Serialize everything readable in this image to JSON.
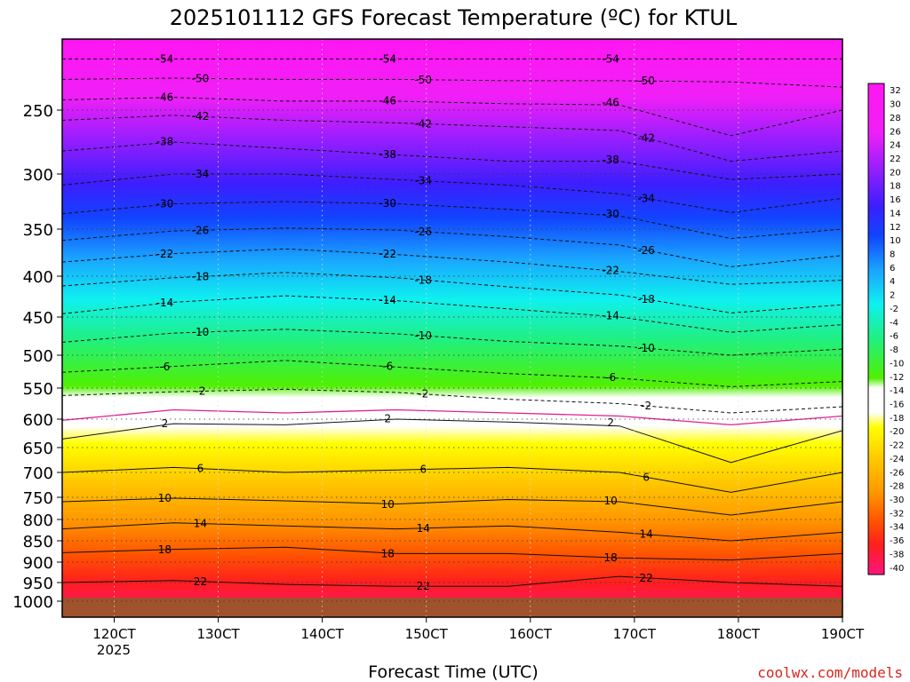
{
  "chart_data": {
    "type": "heatmap",
    "title": "2025101112 GFS Forecast Temperature (ºC) for KTUL",
    "xlabel": "Forecast Time (UTC)",
    "x_ticks": [
      "120CT",
      "130CT",
      "140CT",
      "150CT",
      "160CT",
      "170CT",
      "180CT",
      "190CT"
    ],
    "x_year": "2025",
    "x_range_days": [
      11.5,
      19.0
    ],
    "y_ticks": [
      "250",
      "300",
      "350",
      "400",
      "450",
      "500",
      "550",
      "600",
      "650",
      "700",
      "750",
      "800",
      "850",
      "900",
      "950",
      "1000"
    ],
    "y_values": [
      250,
      300,
      350,
      400,
      450,
      500,
      550,
      600,
      650,
      700,
      750,
      800,
      850,
      900,
      950,
      1000
    ],
    "y_range": [
      200,
      1040
    ],
    "colorbar_ticks": [
      "32",
      "30",
      "28",
      "26",
      "24",
      "22",
      "20",
      "18",
      "16",
      "14",
      "12",
      "10",
      "8",
      "6",
      "4",
      "2",
      "-2",
      "-4",
      "-6",
      "-8",
      "-10",
      "-12",
      "-14",
      "-16",
      "-18",
      "-20",
      "-22",
      "-24",
      "-26",
      "-28",
      "-30",
      "-32",
      "-34",
      "-36",
      "-38",
      "-40"
    ],
    "isotherms": [
      {
        "value": -54,
        "label": "-54",
        "pressure": [
          210,
          210,
          210,
          210,
          210,
          210,
          210,
          210
        ]
      },
      {
        "value": -50,
        "label": "-50",
        "pressure": [
          226,
          225,
          226,
          226,
          227,
          227,
          228,
          232
        ]
      },
      {
        "value": -46,
        "label": "-46",
        "pressure": [
          242,
          240,
          243,
          243,
          245,
          246,
          270,
          250
        ]
      },
      {
        "value": -42,
        "label": "-42",
        "pressure": [
          258,
          254,
          258,
          260,
          263,
          266,
          290,
          282
        ]
      },
      {
        "value": -38,
        "label": "-38",
        "pressure": [
          282,
          275,
          280,
          285,
          290,
          290,
          305,
          300
        ]
      },
      {
        "value": -34,
        "label": "-34",
        "pressure": [
          310,
          300,
          300,
          305,
          310,
          318,
          335,
          322
        ]
      },
      {
        "value": -30,
        "label": "-30",
        "pressure": [
          336,
          327,
          325,
          327,
          332,
          338,
          360,
          350
        ]
      },
      {
        "value": -26,
        "label": "-26",
        "pressure": [
          362,
          352,
          349,
          351,
          358,
          367,
          390,
          378
        ]
      },
      {
        "value": -22,
        "label": "-22",
        "pressure": [
          385,
          376,
          371,
          377,
          385,
          395,
          410,
          405
        ]
      },
      {
        "value": -18,
        "label": "-18",
        "pressure": [
          412,
          402,
          396,
          402,
          413,
          423,
          445,
          435
        ]
      },
      {
        "value": -14,
        "label": "-14",
        "pressure": [
          446,
          432,
          424,
          430,
          440,
          450,
          470,
          460
        ]
      },
      {
        "value": -10,
        "label": "-10",
        "pressure": [
          483,
          471,
          466,
          472,
          482,
          488,
          500,
          492
        ]
      },
      {
        "value": -6,
        "label": "-6",
        "pressure": [
          526,
          517,
          508,
          518,
          528,
          535,
          548,
          540
        ]
      },
      {
        "value": -2,
        "label": "-2",
        "pressure": [
          562,
          556,
          552,
          557,
          568,
          575,
          590,
          580
        ]
      },
      {
        "value": 2,
        "label": "2",
        "pressure": [
          635,
          608,
          610,
          600,
          605,
          612,
          680,
          620
        ]
      },
      {
        "value": 6,
        "label": "6",
        "pressure": [
          700,
          690,
          700,
          695,
          690,
          700,
          740,
          700
        ]
      },
      {
        "value": 10,
        "label": "10",
        "pressure": [
          760,
          752,
          758,
          765,
          755,
          760,
          790,
          760
        ]
      },
      {
        "value": 14,
        "label": "14",
        "pressure": [
          822,
          808,
          815,
          822,
          815,
          830,
          850,
          830
        ]
      },
      {
        "value": 18,
        "label": "18",
        "pressure": [
          878,
          870,
          865,
          880,
          880,
          890,
          895,
          880
        ]
      },
      {
        "value": 22,
        "label": "22",
        "pressure": [
          950,
          945,
          955,
          960,
          960,
          935,
          950,
          960
        ]
      }
    ],
    "freezing_line": {
      "value": 0,
      "pressure": [
        602,
        585,
        590,
        585,
        590,
        595,
        610,
        595
      ]
    }
  },
  "credit": "coolwx.com/models"
}
